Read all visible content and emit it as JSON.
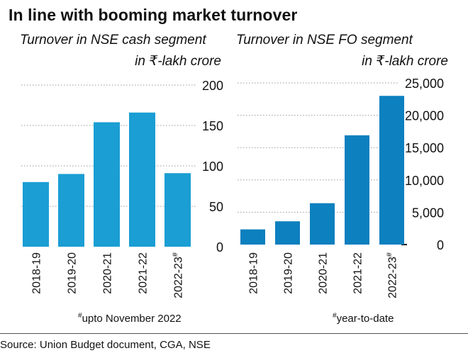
{
  "title": "In line with booming market turnover",
  "source": "Source: Union Budget document, CGA, NSE",
  "chart_data": [
    {
      "type": "bar",
      "title": "Turnover in NSE cash segment",
      "ylabel": "in ₹-lakh crore",
      "categories": [
        "2018-19",
        "2019-20",
        "2020-21",
        "2021-22",
        "2022-23#"
      ],
      "values": [
        80,
        90,
        154,
        166,
        91
      ],
      "ylim": [
        0,
        200
      ],
      "yticks": [
        0,
        50,
        100,
        150,
        200
      ],
      "ytick_labels": [
        "0",
        "50",
        "100",
        "150",
        "200"
      ],
      "grid": true,
      "color": "#1a9ed3",
      "footnote": "#upto November 2022"
    },
    {
      "type": "bar",
      "title": "Turnover in NSE FO segment",
      "ylabel": "in ₹-lakh crore",
      "categories": [
        "2018-19",
        "2019-20",
        "2020-21",
        "2021-22",
        "2022-23#"
      ],
      "values": [
        2350,
        3600,
        6400,
        16900,
        23000
      ],
      "ylim": [
        0,
        25000
      ],
      "yticks": [
        0,
        5000,
        10000,
        15000,
        20000,
        25000
      ],
      "ytick_labels": [
        "0",
        "5,000",
        "10,000",
        "15,000",
        "20,000",
        "25,000"
      ],
      "grid": true,
      "color": "#0d80bf",
      "footnote": "#year-to-date"
    }
  ]
}
